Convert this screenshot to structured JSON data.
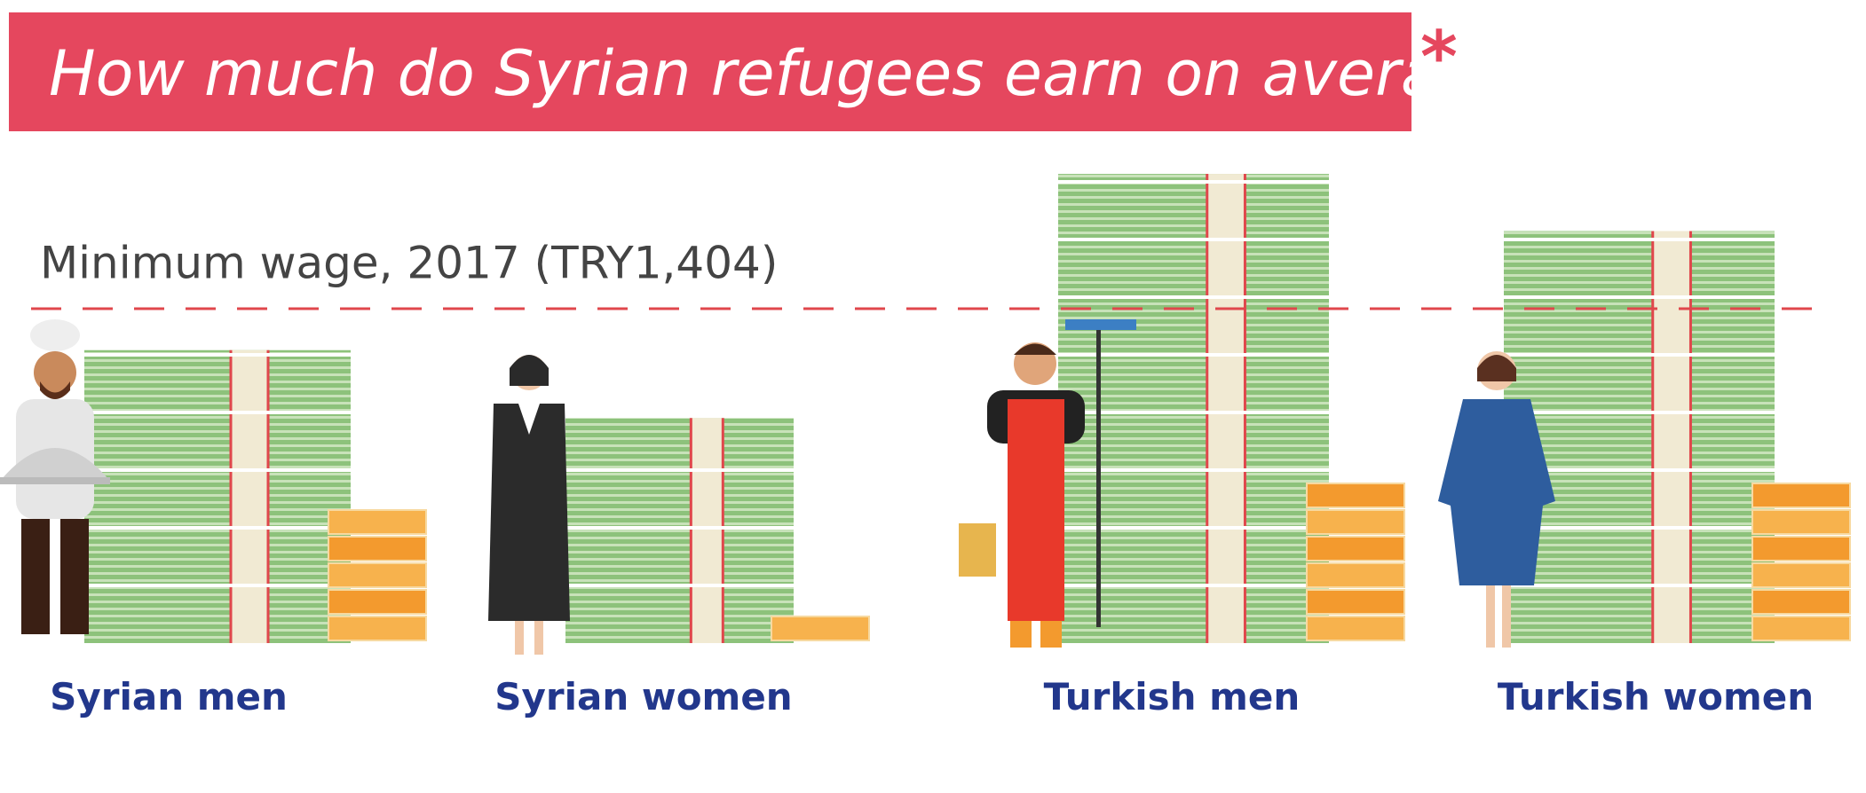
{
  "chart_data": {
    "type": "bar",
    "title": "How much do Syrian refugees earn on average?",
    "annotation": "*",
    "categories": [
      "Syrian men",
      "Syrian women",
      "Turkish men",
      "Turkish women"
    ],
    "values": [
      1230,
      945,
      1970,
      1730
    ],
    "color": "#8dc27b",
    "ylim": [
      0,
      2000
    ],
    "reference": {
      "label": "Minimum wage, 2017 (TRY1,404)",
      "value": 1404,
      "color": "#e0474c"
    }
  }
}
